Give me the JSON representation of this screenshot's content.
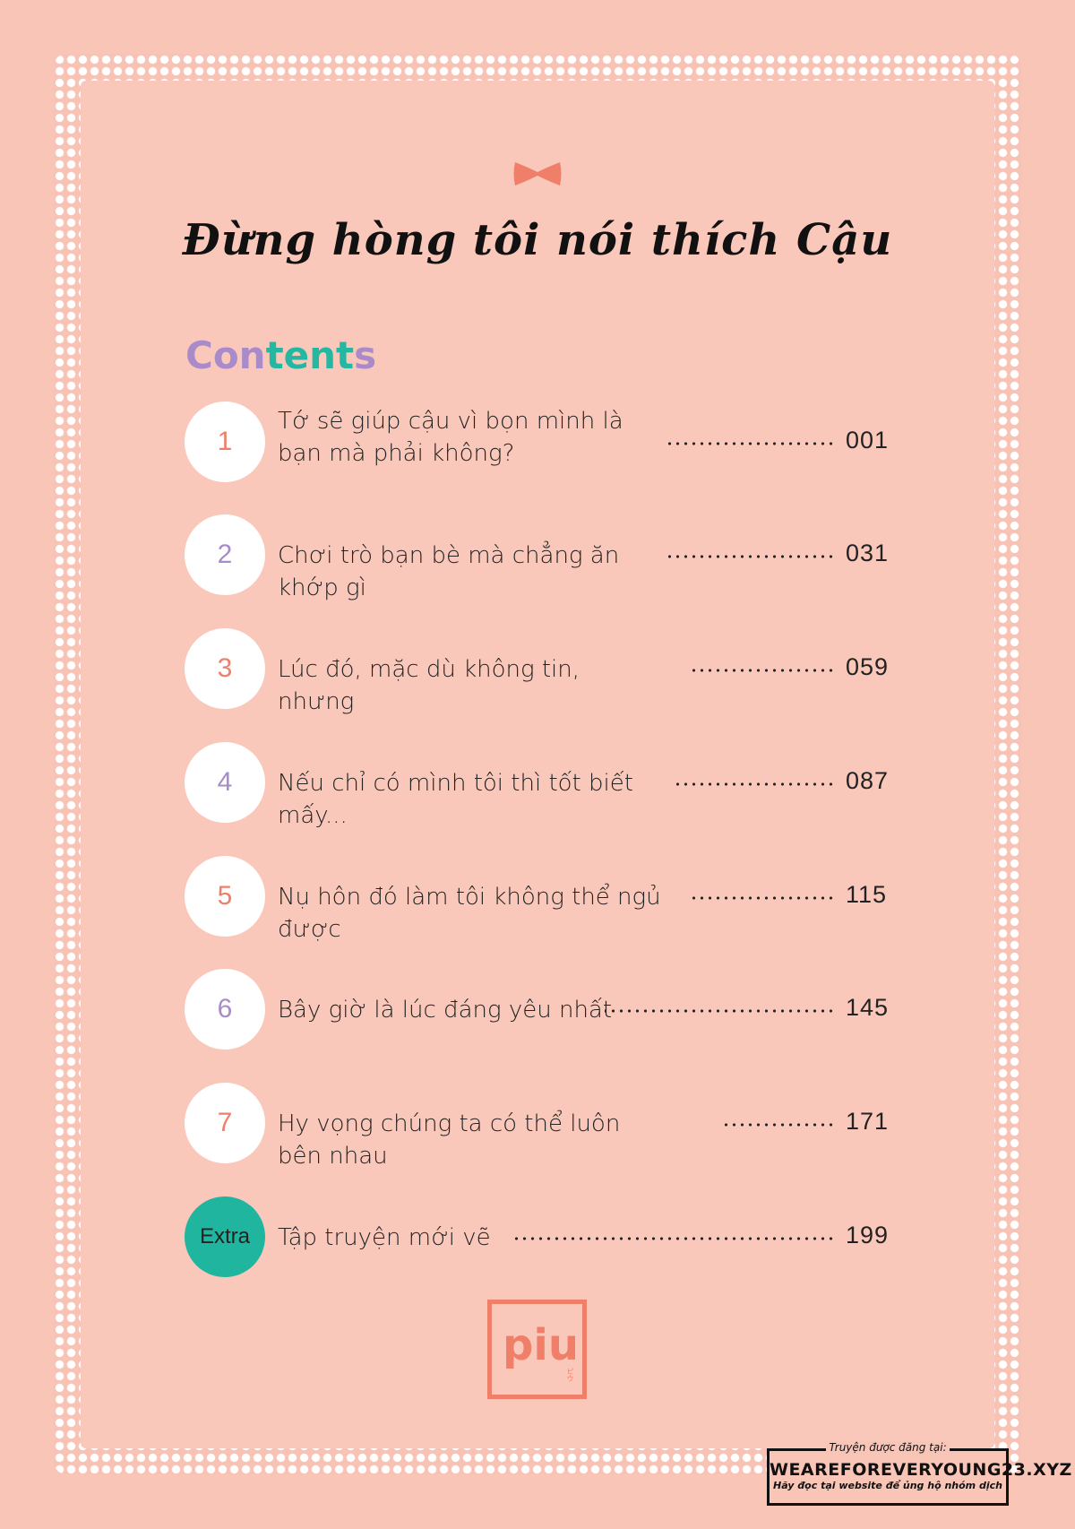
{
  "book_title": "Đừng hòng tôi nói thích Cậu",
  "contents_heading": {
    "part1": "Con",
    "part2": "tent",
    "part3": "s"
  },
  "colors": {
    "coral": "#f07f6a",
    "purple": "#a98bc9",
    "teal": "#1fb59f",
    "background": "#f8c5b7"
  },
  "chapters": [
    {
      "number": "1",
      "title": "Tớ sẽ giúp cậu vì bọn mình là bạn mà phải không?",
      "page": "001",
      "color": "#f07f6a"
    },
    {
      "number": "2",
      "title": "Chơi trò bạn bè mà chẳng ăn khớp gì",
      "page": "031",
      "color": "#a98bc9"
    },
    {
      "number": "3",
      "title": "Lúc đó, mặc dù không tin, nhưng",
      "page": "059",
      "color": "#f07f6a"
    },
    {
      "number": "4",
      "title": "Nếu chỉ có mình tôi thì tốt biết mấy...",
      "page": "087",
      "color": "#a98bc9"
    },
    {
      "number": "5",
      "title": "Nụ hôn đó làm tôi không thể ngủ được",
      "page": "115",
      "color": "#f07f6a"
    },
    {
      "number": "6",
      "title": "Bây giờ là lúc đáng yêu nhất",
      "page": "145",
      "color": "#a98bc9"
    },
    {
      "number": "7",
      "title": "Hy vọng chúng ta có thể luôn bên nhau",
      "page": "171",
      "color": "#f07f6a"
    },
    {
      "number": "Extra",
      "title": "Tập truyện mới vẽ",
      "page": "199",
      "color": "#222222"
    }
  ],
  "publisher_logo": {
    "wordmark": "piu",
    "sub": "ピウ"
  },
  "watermark": {
    "top": "Truyện được đăng tại:",
    "main": "WEAREFOREVERYOUNG23.XYZ",
    "sub": "Hãy đọc tại website để ủng hộ nhóm dịch"
  }
}
